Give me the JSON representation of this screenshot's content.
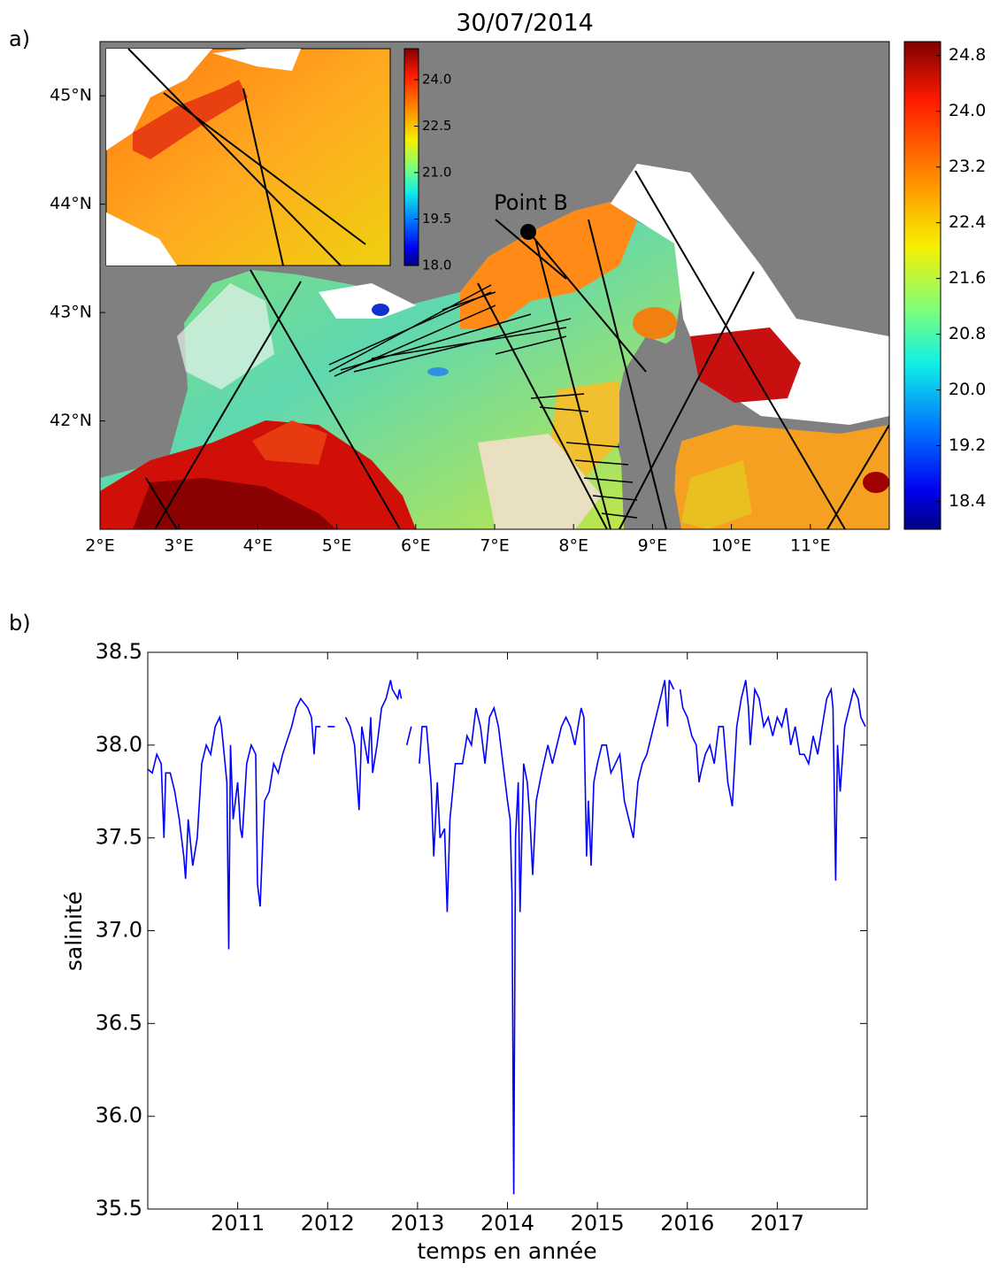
{
  "panel_labels": [
    "a)",
    "b)"
  ],
  "chart_data": [
    {
      "type": "map",
      "title": "30/07/2014",
      "xlim": [
        2,
        12
      ],
      "ylim": [
        41.0,
        45.5
      ],
      "xticks": [
        {
          "value": 2,
          "label": "2°E"
        },
        {
          "value": 3,
          "label": "3°E"
        },
        {
          "value": 4,
          "label": "4°E"
        },
        {
          "value": 5,
          "label": "5°E"
        },
        {
          "value": 6,
          "label": "6°E"
        },
        {
          "value": 7,
          "label": "7°E"
        },
        {
          "value": 8,
          "label": "8°E"
        },
        {
          "value": 9,
          "label": "9°E"
        },
        {
          "value": 10,
          "label": "10°E"
        },
        {
          "value": 11,
          "label": "11°E"
        }
      ],
      "yticks": [
        {
          "value": 42,
          "label": "42°N"
        },
        {
          "value": 43,
          "label": "43°N"
        },
        {
          "value": 44,
          "label": "44°N"
        },
        {
          "value": 45,
          "label": "45°N"
        }
      ],
      "annotations": [
        "Point B"
      ],
      "colorbar": {
        "clim": [
          18.0,
          25.0
        ],
        "ticks": [
          18.4,
          19.2,
          {
            "value": 20,
            "label": "20.0"
          },
          20.8,
          21.6,
          22.4,
          23.2,
          {
            "value": 24,
            "label": "24.0"
          },
          24.8
        ]
      },
      "inset_colorbar": {
        "clim": [
          18.0,
          25.0
        ],
        "ticks": [
          {
            "value": 18,
            "label": "18.0"
          },
          19.5,
          {
            "value": 21,
            "label": "21.0"
          },
          22.5,
          {
            "value": 24,
            "label": "24.0"
          }
        ]
      }
    },
    {
      "type": "line",
      "xlabel": "temps en année",
      "ylabel": "salinité",
      "color": "#0000ff",
      "xlim": [
        2010,
        2018
      ],
      "ylim": [
        35.5,
        38.5
      ],
      "xticks": [
        2011,
        2012,
        2013,
        2014,
        2015,
        2016,
        2017
      ],
      "yticks": [
        35.5,
        {
          "value": 36,
          "label": "36.0"
        },
        36.5,
        {
          "value": 37,
          "label": "37.0"
        },
        37.5,
        {
          "value": 38,
          "label": "38.0"
        },
        38.5
      ],
      "x": [
        2010.0,
        2010.05,
        2010.1,
        2010.15,
        2010.18,
        2010.2,
        2010.25,
        2010.3,
        2010.35,
        2010.4,
        2010.42,
        2010.45,
        2010.5,
        2010.55,
        2010.6,
        2010.65,
        2010.7,
        2010.75,
        2010.8,
        2010.82,
        2010.88,
        2010.9,
        2010.92,
        2010.95,
        2011.0,
        2011.03,
        2011.05,
        2011.1,
        2011.15,
        2011.2,
        2011.22,
        2011.25,
        2011.28,
        2011.3,
        2011.35,
        2011.4,
        2011.45,
        2011.5,
        2011.6,
        2011.65,
        2011.7,
        2011.78,
        2011.82,
        2011.85,
        2011.87,
        2011.92,
        2011.95,
        2012.0,
        2012.08,
        2012.12,
        2012.2,
        2012.25,
        2012.3,
        2012.35,
        2012.38,
        2012.45,
        2012.48,
        2012.5,
        2012.55,
        2012.6,
        2012.65,
        2012.7,
        2012.72,
        2012.78,
        2012.8,
        2012.82,
        2012.85,
        2012.88,
        2012.93,
        2012.97,
        2013.02,
        2013.05,
        2013.1,
        2013.15,
        2013.18,
        2013.22,
        2013.25,
        2013.3,
        2013.33,
        2013.36,
        2013.42,
        2013.5,
        2013.55,
        2013.6,
        2013.65,
        2013.7,
        2013.75,
        2013.8,
        2013.85,
        2013.9,
        2013.95,
        2014.0,
        2014.03,
        2014.05,
        2014.07,
        2014.09,
        2014.12,
        2014.14,
        2014.18,
        2014.22,
        2014.25,
        2014.28,
        2014.32,
        2014.38,
        2014.45,
        2014.5,
        2014.55,
        2014.6,
        2014.65,
        2014.7,
        2014.75,
        2014.82,
        2014.85,
        2014.88,
        2014.9,
        2014.93,
        2014.96,
        2015.0,
        2015.05,
        2015.1,
        2015.15,
        2015.2,
        2015.25,
        2015.3,
        2015.35,
        2015.4,
        2015.45,
        2015.5,
        2015.55,
        2015.6,
        2015.65,
        2015.7,
        2015.75,
        2015.78,
        2015.8,
        2015.85,
        2015.88,
        2015.92,
        2015.95,
        2016.0,
        2016.05,
        2016.1,
        2016.13,
        2016.15,
        2016.2,
        2016.25,
        2016.3,
        2016.35,
        2016.4,
        2016.45,
        2016.5,
        2016.55,
        2016.6,
        2016.65,
        2016.68,
        2016.7,
        2016.75,
        2016.8,
        2016.85,
        2016.9,
        2016.95,
        2017.0,
        2017.05,
        2017.1,
        2017.15,
        2017.2,
        2017.25,
        2017.3,
        2017.35,
        2017.4,
        2017.45,
        2017.5,
        2017.55,
        2017.6,
        2017.62,
        2017.65,
        2017.67,
        2017.7,
        2017.75,
        2017.8,
        2017.85,
        2017.9,
        2017.93,
        2017.98
      ],
      "values": [
        37.87,
        37.85,
        37.95,
        37.9,
        37.5,
        37.85,
        37.85,
        37.75,
        37.6,
        37.4,
        37.28,
        37.6,
        37.35,
        37.5,
        37.9,
        38.0,
        37.95,
        38.1,
        38.15,
        38.1,
        37.8,
        36.9,
        38.0,
        37.6,
        37.8,
        37.55,
        37.5,
        37.9,
        38.0,
        37.95,
        37.25,
        37.13,
        37.5,
        37.7,
        37.75,
        37.9,
        37.85,
        37.95,
        38.1,
        38.2,
        38.25,
        38.2,
        38.15,
        37.95,
        38.1,
        38.1,
        null,
        38.1,
        38.1,
        null,
        38.15,
        38.1,
        38.0,
        37.65,
        38.1,
        37.9,
        38.15,
        37.85,
        38.0,
        38.2,
        38.25,
        38.35,
        38.3,
        38.25,
        38.3,
        38.25,
        null,
        38.0,
        38.1,
        null,
        37.9,
        38.1,
        38.1,
        37.8,
        37.4,
        37.8,
        37.5,
        37.55,
        37.1,
        37.6,
        37.9,
        37.9,
        38.05,
        38.0,
        38.2,
        38.1,
        37.9,
        38.15,
        38.2,
        38.1,
        37.9,
        37.7,
        37.6,
        37.2,
        35.58,
        37.5,
        37.8,
        37.1,
        37.9,
        37.8,
        37.6,
        37.3,
        37.7,
        37.85,
        38.0,
        37.9,
        38.0,
        38.1,
        38.15,
        38.1,
        38.0,
        38.2,
        38.15,
        37.4,
        37.7,
        37.35,
        37.8,
        37.9,
        38.0,
        38.0,
        37.85,
        37.9,
        37.95,
        37.7,
        37.6,
        37.5,
        37.8,
        37.9,
        37.95,
        38.05,
        38.15,
        38.25,
        38.35,
        38.1,
        38.35,
        38.3,
        null,
        38.3,
        38.2,
        38.15,
        38.05,
        38.0,
        37.8,
        37.85,
        37.95,
        38.0,
        37.9,
        38.1,
        38.1,
        37.8,
        37.67,
        38.1,
        38.25,
        38.35,
        38.2,
        38.0,
        38.3,
        38.25,
        38.1,
        38.15,
        38.05,
        38.15,
        38.1,
        38.2,
        38.0,
        38.1,
        37.95,
        37.95,
        37.9,
        38.05,
        37.95,
        38.1,
        38.25,
        38.3,
        38.2,
        37.27,
        38.0,
        37.75,
        38.1,
        38.2,
        38.3,
        38.25,
        38.15,
        38.1
      ]
    }
  ]
}
